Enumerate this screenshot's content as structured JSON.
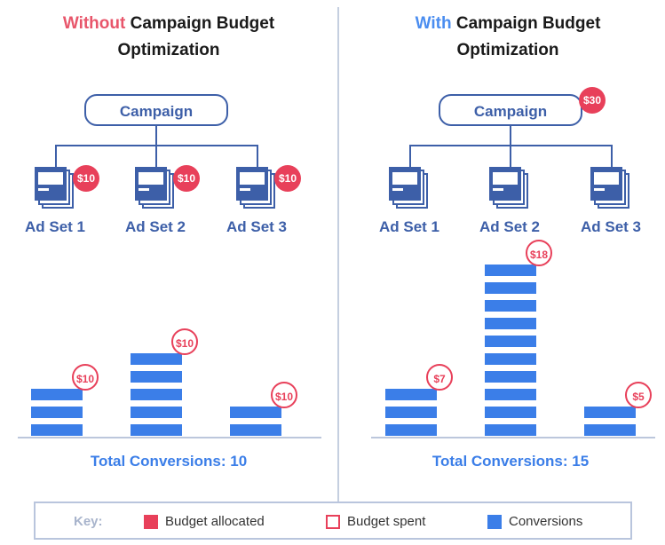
{
  "left": {
    "title_highlight": "Without",
    "title_rest": " Campaign Budget",
    "title_line2": "Optimization",
    "campaign_label": "Campaign",
    "ad_sets": [
      {
        "label": "Ad Set 1",
        "budget": "$10"
      },
      {
        "label": "Ad Set 2",
        "budget": "$10"
      },
      {
        "label": "Ad Set 3",
        "budget": "$10"
      }
    ],
    "bars": [
      {
        "segments": 3,
        "spent": "$10"
      },
      {
        "segments": 5,
        "spent": "$10"
      },
      {
        "segments": 2,
        "spent": "$10"
      }
    ],
    "total": "Total Conversions: 10"
  },
  "right": {
    "title_highlight": "With",
    "title_rest": " Campaign Budget",
    "title_line2": "Optimization",
    "campaign_label": "Campaign",
    "campaign_budget": "$30",
    "ad_sets": [
      {
        "label": "Ad Set 1"
      },
      {
        "label": "Ad Set 2"
      },
      {
        "label": "Ad Set 3"
      }
    ],
    "bars": [
      {
        "segments": 3,
        "spent": "$7"
      },
      {
        "segments": 10,
        "spent": "$18"
      },
      {
        "segments": 2,
        "spent": "$5"
      }
    ],
    "total": "Total Conversions: 15"
  },
  "key": {
    "label": "Key:",
    "budget_allocated": "Budget allocated",
    "budget_spent": "Budget spent",
    "conversions": "Conversions"
  },
  "colors": {
    "red": "#e8405a",
    "blue": "#3b7ee8",
    "navy": "#3d5fa8"
  }
}
